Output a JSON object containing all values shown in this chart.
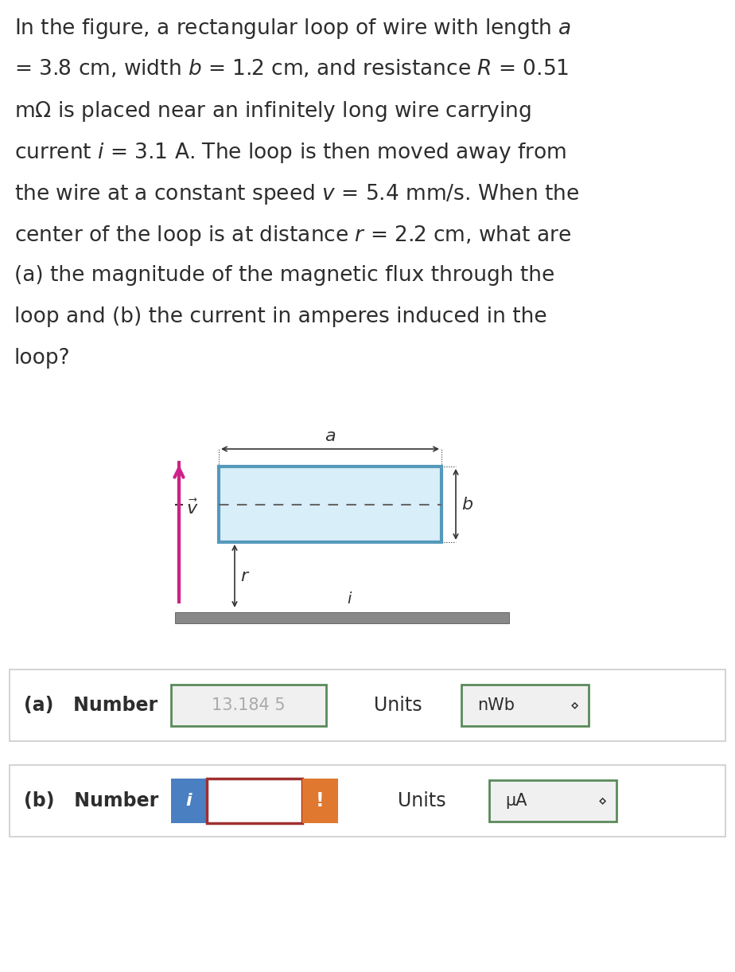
{
  "title_text": "In the figure, a rectangular loop of wire with length α\n= 3.8 cm, width β = 1.2 cm, and resistance R = 0.51\nmΩ is placed near an infinitely long wire carrying\ncurrent i = 3.1 A. The loop is then moved away from\nthe wire at a constant speed v = 5.4 mm/s. When the\ncenter of the loop is at distance r = 2.2 cm, what are\n(a) the magnitude of the magnetic flux through the\nloop and (b) the current in amperes induced in the\nloop?",
  "answer_a_label": "(a)  Number",
  "answer_a_value": "13.184 5",
  "answer_a_units_label": "Units",
  "answer_a_units_value": "nWb",
  "answer_b_label": "(b)  Number",
  "answer_b_units_label": "Units",
  "answer_b_units_value": "μA",
  "bg_color": "#ffffff",
  "text_color": "#2d2d2d",
  "box_border_color": "#5a8a5a",
  "box_fill_color": "#f0f0f0",
  "input_border_color": "#888a55",
  "row_border_color": "#cccccc",
  "blue_btn_color": "#4a7fc1",
  "orange_btn_color": "#e07830",
  "inner_box_border_color": "#a03030",
  "diagram_rect_fill": "#d8eef8",
  "diagram_rect_border": "#5599bb",
  "wire_color": "#555555",
  "arrow_color": "#cc2288",
  "dim_arrow_color": "#333333",
  "dashed_color": "#666666"
}
